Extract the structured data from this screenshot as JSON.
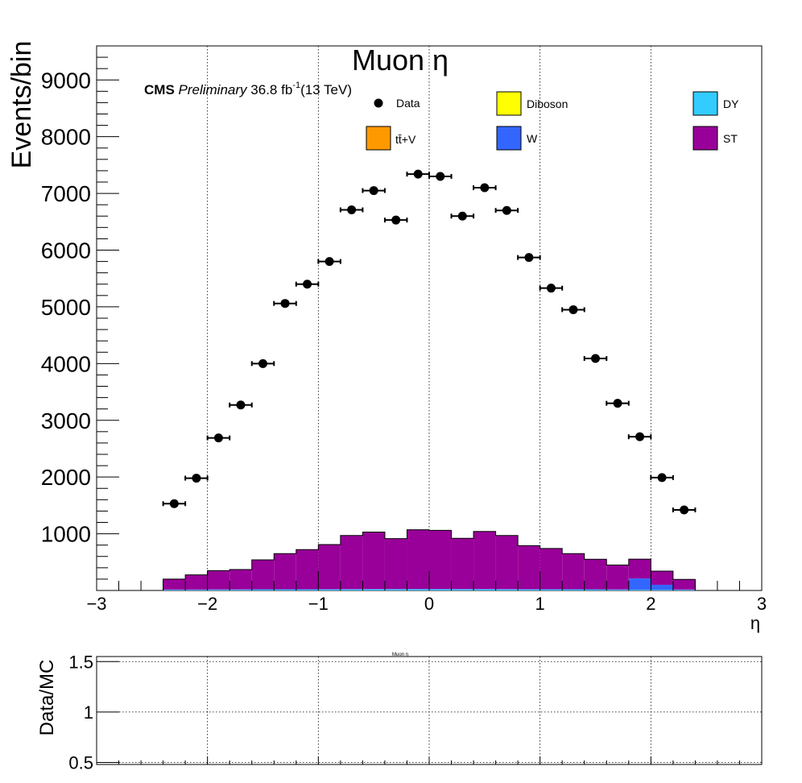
{
  "chart_data": [
    {
      "type": "bar",
      "stacked": true,
      "title": "Muon η",
      "xlabel": "η",
      "ylabel": "Events/bin",
      "xlim": [
        -3,
        3
      ],
      "ylim": [
        0,
        9600
      ],
      "x_ticks": [
        "−3",
        "−2",
        "−1",
        "0",
        "1",
        "2",
        "3"
      ],
      "y_ticks": [
        "1000",
        "2000",
        "3000",
        "4000",
        "5000",
        "6000",
        "7000",
        "8000",
        "9000"
      ],
      "y_tick_values": [
        1000,
        2000,
        3000,
        4000,
        5000,
        6000,
        7000,
        8000,
        9000
      ],
      "grid_x": true,
      "grid_y": false,
      "cms_label": {
        "experiment": "CMS",
        "status": "Preliminary",
        "lumi": "36.8 fb",
        "lumi_exp": "-1",
        "energy": "(13 TeV)"
      },
      "legend": {
        "placement": "top",
        "entries": [
          {
            "name": "Data",
            "kind": "marker",
            "color": "#000000"
          },
          {
            "name": "Diboson",
            "kind": "box",
            "color": "#ffff00"
          },
          {
            "name": "DY",
            "kind": "box",
            "color": "#33ccff"
          },
          {
            "name": "tt̄+V",
            "kind": "box",
            "color": "#ff9900"
          },
          {
            "name": "W",
            "kind": "box",
            "color": "#3366ff"
          },
          {
            "name": "ST",
            "kind": "box",
            "color": "#990099"
          }
        ]
      },
      "bin_edges": [
        -2.4,
        -2.2,
        -2.0,
        -1.8,
        -1.6,
        -1.4,
        -1.2,
        -1.0,
        -0.8,
        -0.6,
        -0.4,
        -0.2,
        0.0,
        0.2,
        0.4,
        0.6,
        0.8,
        1.0,
        1.2,
        1.4,
        1.6,
        1.8,
        2.0,
        2.2,
        2.4
      ],
      "series": [
        {
          "name": "DY",
          "color": "#33ccff",
          "values": [
            10,
            10,
            12,
            12,
            14,
            15,
            15,
            16,
            17,
            18,
            18,
            19,
            19,
            18,
            18,
            17,
            16,
            16,
            15,
            14,
            12,
            12,
            10,
            10
          ]
        },
        {
          "name": "W",
          "color": "#3366ff",
          "values": [
            5,
            5,
            5,
            6,
            6,
            6,
            6,
            7,
            7,
            8,
            8,
            8,
            8,
            8,
            8,
            7,
            7,
            6,
            6,
            6,
            5,
            200,
            90,
            5
          ]
        },
        {
          "name": "ST",
          "color": "#990099",
          "values": [
            185,
            260,
            333,
            352,
            520,
            629,
            699,
            787,
            946,
            1004,
            889,
            1043,
            1033,
            894,
            1014,
            946,
            767,
            718,
            629,
            530,
            433,
            340,
            240,
            180
          ]
        }
      ],
      "data_points": {
        "name": "Data",
        "x": [
          -2.3,
          -2.1,
          -1.9,
          -1.7,
          -1.5,
          -1.3,
          -1.1,
          -0.9,
          -0.7,
          -0.5,
          -0.3,
          -0.1,
          0.1,
          0.3,
          0.5,
          0.7,
          0.9,
          1.1,
          1.3,
          1.5,
          1.7,
          1.9,
          2.1,
          2.3
        ],
        "y": [
          1530,
          1980,
          2690,
          3270,
          4000,
          5060,
          5400,
          5800,
          6710,
          7050,
          6530,
          7340,
          7300,
          6600,
          7100,
          6700,
          5870,
          5330,
          4950,
          4090,
          3300,
          2710,
          1990,
          1420
        ],
        "x_err": 0.1
      }
    },
    {
      "type": "line",
      "title": "Muon η",
      "ylabel": "Data/MC",
      "xlim": [
        -3,
        3
      ],
      "ylim": [
        0.48,
        1.55
      ],
      "y_ticks": [
        "0.5",
        "1",
        "1.5"
      ],
      "y_tick_values": [
        0.5,
        1,
        1.5
      ],
      "grid_x": true,
      "grid_y": true,
      "series": []
    }
  ]
}
